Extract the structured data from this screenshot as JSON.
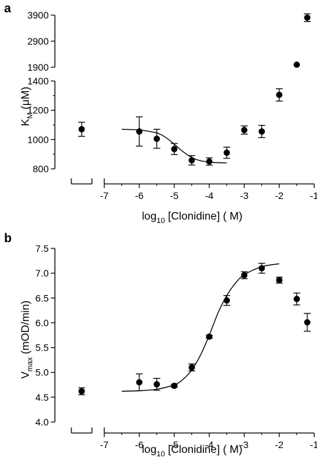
{
  "chart_data": [
    {
      "type": "scatter",
      "panel_label": "a",
      "xlabel": {
        "pre": "log",
        "sub": "10",
        "post": " [Clonidine] ( M)"
      },
      "ylabel": {
        "pre": "K",
        "sub": "M",
        "post": " (μM)"
      },
      "xlim": [
        -7.8,
        -1
      ],
      "x_break_between": [
        -7.6,
        -7
      ],
      "x_ticks": [
        "-7",
        "-6",
        "-5",
        "-4",
        "-3",
        "-2",
        "-1"
      ],
      "y_ticks_lower": [
        "800",
        "1000",
        "1200",
        "1400"
      ],
      "y_ticks_upper": [
        "1900",
        "2900",
        "3900"
      ],
      "y_break": 1400,
      "series": [
        {
          "x": [
            -7.6,
            -6,
            -5.5,
            -5,
            -4.5,
            -4,
            -3.5,
            -3,
            -2.5,
            -2,
            -1.5,
            -1.2
          ],
          "y": [
            1070,
            1055,
            1005,
            935,
            858,
            850,
            910,
            1065,
            1055,
            1305,
            2000,
            3800
          ],
          "err": [
            48,
            100,
            65,
            38,
            32,
            25,
            38,
            28,
            42,
            42,
            0,
            150
          ]
        }
      ],
      "fit": {
        "x": [
          -6.5,
          -6.0,
          -5.5,
          -5.25,
          -5.0,
          -4.75,
          -4.5,
          -4.25,
          -4.0,
          -3.75,
          -3.5
        ],
        "y": [
          1070,
          1065,
          1045,
          1015,
          968,
          917,
          877,
          855,
          846,
          842,
          840
        ]
      }
    },
    {
      "type": "scatter",
      "panel_label": "b",
      "xlabel": {
        "pre": "log",
        "sub": "10",
        "post": " [Clonidine] ( M)"
      },
      "ylabel": {
        "pre": "V",
        "sub": "max",
        "post": " (mOD/min)"
      },
      "xlim": [
        -7.8,
        -1
      ],
      "x_break_between": [
        -7.6,
        -7
      ],
      "x_ticks": [
        "-7",
        "-6",
        "-5",
        "-4",
        "-3",
        "-2",
        "-1"
      ],
      "ylim": [
        4.0,
        7.5
      ],
      "y_ticks": [
        "4.0",
        "4.5",
        "5.0",
        "5.5",
        "6.0",
        "6.5",
        "7.0",
        "7.5"
      ],
      "series": [
        {
          "x": [
            -7.6,
            -6,
            -5.5,
            -5,
            -4.5,
            -4,
            -3.5,
            -3,
            -2.5,
            -2,
            -1.5,
            -1.2
          ],
          "y": [
            4.62,
            4.8,
            4.76,
            4.73,
            5.1,
            5.72,
            6.45,
            6.96,
            7.1,
            6.86,
            6.48,
            6.01
          ],
          "err": [
            0.07,
            0.17,
            0.12,
            0.03,
            0.07,
            0.03,
            0.1,
            0.07,
            0.1,
            0.06,
            0.12,
            0.18
          ]
        }
      ],
      "fit": {
        "x": [
          -6.5,
          -6.0,
          -5.5,
          -5.0,
          -4.75,
          -4.5,
          -4.25,
          -4.0,
          -3.75,
          -3.5,
          -3.25,
          -3.0,
          -2.5,
          -2.0
        ],
        "y": [
          4.62,
          4.63,
          4.66,
          4.75,
          4.86,
          5.05,
          5.35,
          5.75,
          6.2,
          6.55,
          6.8,
          6.97,
          7.13,
          7.19
        ]
      }
    }
  ]
}
